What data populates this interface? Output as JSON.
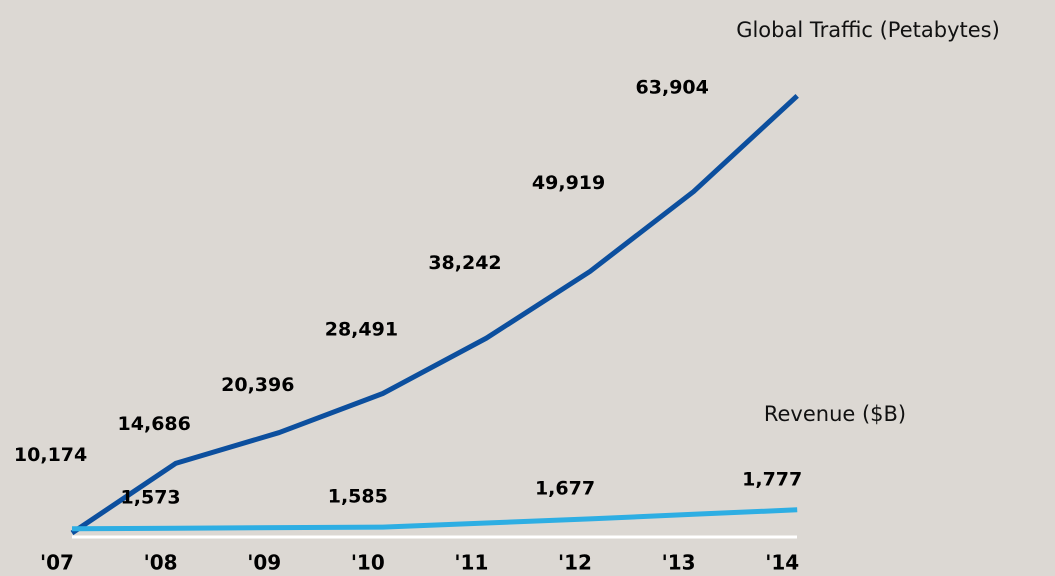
{
  "chart_data": {
    "type": "line",
    "categories": [
      "'07",
      "'08",
      "'09",
      "'10",
      "'11",
      "'12",
      "'13",
      "'14"
    ],
    "ylim": [
      0,
      75000
    ],
    "y2lim": [
      1520,
      7200
    ],
    "series": [
      {
        "name": "Global Traffic (Petabytes)",
        "color": "#0c4f9e",
        "values": [
          0,
          10174,
          14686,
          20396,
          28491,
          38242,
          49919,
          63904
        ],
        "value_labels": [
          null,
          "10,174",
          "14,686",
          "20,396",
          "28,491",
          "38,242",
          "49,919",
          "63,904"
        ]
      },
      {
        "name": "Revenue ($B)",
        "color": "#2eaee3",
        "axis": "y2",
        "values": [
          1567,
          1573,
          1579,
          1585,
          1631,
          1677,
          1727,
          1777
        ],
        "value_labels": [
          null,
          "1,573",
          null,
          "1,585",
          null,
          "1,677",
          null,
          "1,777"
        ]
      }
    ]
  }
}
